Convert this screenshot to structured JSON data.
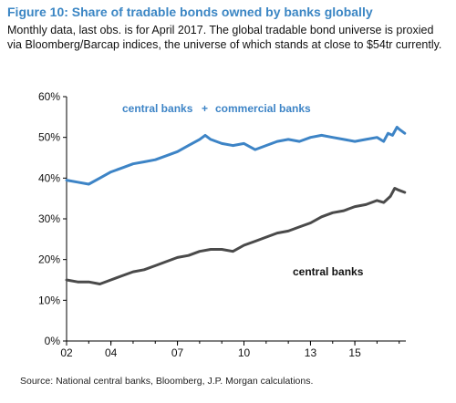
{
  "figure": {
    "title": "Figure 10: Share of tradable bonds owned by banks globally",
    "subtitle": "Monthly data, last obs. is for April 2017. The global tradable bond universe is proxied via Bloomberg/Barcap indices, the universe of which stands at close to $54tr currently.",
    "source": "Source: National central banks, Bloomberg, J.P. Morgan calculations."
  },
  "colors": {
    "central_plus_commercial": "#3d84c6",
    "central": "#4a4a4a",
    "title": "#3b86c4",
    "axis": "#000000"
  },
  "chart_data": {
    "type": "line",
    "title": "Figure 10: Share of tradable bonds owned by banks globally",
    "xlabel": "",
    "ylabel": "",
    "xlim": [
      2002.0,
      2017.3
    ],
    "ylim": [
      0,
      60
    ],
    "x_ticks": [
      2002,
      2004,
      2007,
      2010,
      2013,
      2015
    ],
    "x_tick_labels": [
      "02",
      "04",
      "07",
      "10",
      "13",
      "15"
    ],
    "y_ticks": [
      0,
      10,
      20,
      30,
      40,
      50,
      60
    ],
    "y_tick_labels": [
      "0%",
      "10%",
      "20%",
      "30%",
      "40%",
      "50%",
      "60%"
    ],
    "grid": false,
    "legend": "none (series labelled inline)",
    "annotations": [
      {
        "text": "central banks",
        "plus": "+",
        "text2": "commercial banks",
        "series": "central_plus_commercial"
      },
      {
        "text": "central banks",
        "series": "central"
      }
    ],
    "series": [
      {
        "key": "central_plus_commercial",
        "name": "central banks + commercial banks",
        "x": [
          2002.0,
          2002.5,
          2003.0,
          2003.5,
          2004.0,
          2004.5,
          2005.0,
          2005.5,
          2006.0,
          2006.5,
          2007.0,
          2007.5,
          2008.0,
          2008.25,
          2008.5,
          2009.0,
          2009.5,
          2010.0,
          2010.5,
          2011.0,
          2011.5,
          2012.0,
          2012.5,
          2013.0,
          2013.5,
          2014.0,
          2014.5,
          2015.0,
          2015.5,
          2016.0,
          2016.3,
          2016.5,
          2016.7,
          2016.9,
          2017.0,
          2017.25
        ],
        "y": [
          39.5,
          39.0,
          38.5,
          40.0,
          41.5,
          42.5,
          43.5,
          44.0,
          44.5,
          45.5,
          46.5,
          48.0,
          49.5,
          50.5,
          49.5,
          48.5,
          48.0,
          48.5,
          47.0,
          48.0,
          49.0,
          49.5,
          49.0,
          50.0,
          50.5,
          50.0,
          49.5,
          49.0,
          49.5,
          50.0,
          49.0,
          51.0,
          50.5,
          52.5,
          52.0,
          51.0
        ]
      },
      {
        "key": "central",
        "name": "central banks",
        "x": [
          2002.0,
          2002.5,
          2003.0,
          2003.5,
          2004.0,
          2004.5,
          2005.0,
          2005.5,
          2006.0,
          2006.5,
          2007.0,
          2007.5,
          2008.0,
          2008.5,
          2009.0,
          2009.5,
          2010.0,
          2010.5,
          2011.0,
          2011.5,
          2012.0,
          2012.5,
          2013.0,
          2013.5,
          2014.0,
          2014.5,
          2015.0,
          2015.5,
          2016.0,
          2016.3,
          2016.6,
          2016.8,
          2017.0,
          2017.25
        ],
        "y": [
          15.0,
          14.5,
          14.5,
          14.0,
          15.0,
          16.0,
          17.0,
          17.5,
          18.5,
          19.5,
          20.5,
          21.0,
          22.0,
          22.5,
          22.5,
          22.0,
          23.5,
          24.5,
          25.5,
          26.5,
          27.0,
          28.0,
          29.0,
          30.5,
          31.5,
          32.0,
          33.0,
          33.5,
          34.5,
          34.0,
          35.5,
          37.5,
          37.0,
          36.5
        ]
      }
    ]
  }
}
